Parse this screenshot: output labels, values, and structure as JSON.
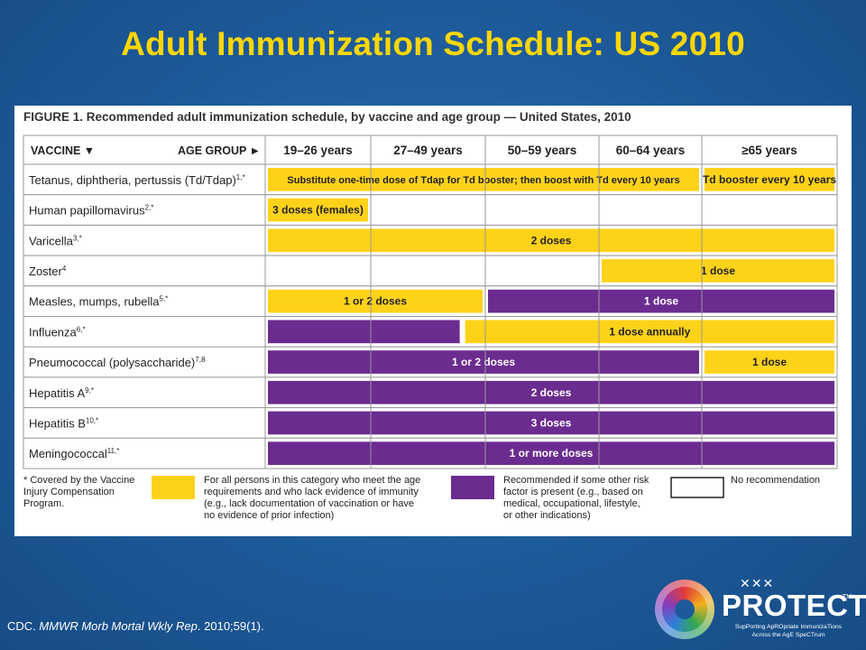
{
  "slide": {
    "title": "Adult Immunization Schedule: US 2010",
    "citation_prefix": "CDC. ",
    "citation_journal": "MMWR Morb Mortal Wkly Rep",
    "citation_suffix": ". 2010;59(1).",
    "logo_text": "PROTECT",
    "logo_tm": "TM",
    "logo_tagline_1": "SupPorting ApROpriate ImmunizaTions",
    "logo_tagline_2": "Across the AgE SpeCTrum"
  },
  "chart_data": {
    "type": "table",
    "title": "FIGURE 1. Recommended adult immunization schedule, by vaccine and age group — United States, 2010",
    "row_header_label": "VACCINE ▼",
    "col_header_label": "AGE GROUP ►",
    "age_groups": [
      "19–26 years",
      "27–49 years",
      "50–59 years",
      "60–64 years",
      "≥65 years"
    ],
    "colors": {
      "recommended_all": "#ffd21a",
      "recommended_risk": "#6b2c8f",
      "none": "#ffffff"
    },
    "rows": [
      {
        "vaccine": "Tetanus, diphtheria, pertussis (Td/Tdap)",
        "sup": "1,*",
        "bars": [
          {
            "label": "Substitute one-time dose of Tdap for Td booster; then boost with Td every 10 years",
            "start": 0,
            "end": 4,
            "kind": "recommended_all"
          },
          {
            "label": "Td booster every 10 years",
            "start": 4,
            "end": 5,
            "kind": "recommended_all"
          }
        ]
      },
      {
        "vaccine": "Human papillomavirus",
        "sup": "2,*",
        "bars": [
          {
            "label": "3 doses (females)",
            "start": 0,
            "end": 1,
            "kind": "recommended_all"
          }
        ]
      },
      {
        "vaccine": "Varicella",
        "sup": "3,*",
        "bars": [
          {
            "label": "2 doses",
            "start": 0,
            "end": 5,
            "kind": "recommended_all"
          }
        ]
      },
      {
        "vaccine": "Zoster",
        "sup": "4",
        "bars": [
          {
            "label": "1 dose",
            "start": 3,
            "end": 5,
            "kind": "recommended_all"
          }
        ]
      },
      {
        "vaccine": "Measles, mumps, rubella",
        "sup": "5,*",
        "bars": [
          {
            "label": "1 or 2 doses",
            "start": 0,
            "end": 2,
            "kind": "recommended_all"
          },
          {
            "label": "1 dose",
            "start": 2,
            "end": 5,
            "kind": "recommended_risk"
          }
        ]
      },
      {
        "vaccine": "Influenza",
        "sup": "6,*",
        "bars": [
          {
            "label": "",
            "start": 0,
            "end": 1.8,
            "kind": "recommended_risk"
          },
          {
            "label": "1 dose annually",
            "start": 1.8,
            "end": 5,
            "kind": "recommended_all"
          }
        ]
      },
      {
        "vaccine": "Pneumococcal (polysaccharide)",
        "sup": "7,8",
        "bars": [
          {
            "label": "1 or 2 doses",
            "start": 0,
            "end": 4,
            "kind": "recommended_risk"
          },
          {
            "label": "1 dose",
            "start": 4,
            "end": 5,
            "kind": "recommended_all"
          }
        ]
      },
      {
        "vaccine": "Hepatitis A",
        "sup": "9,*",
        "bars": [
          {
            "label": "2 doses",
            "start": 0,
            "end": 5,
            "kind": "recommended_risk"
          }
        ]
      },
      {
        "vaccine": "Hepatitis B",
        "sup": "10,*",
        "bars": [
          {
            "label": "3 doses",
            "start": 0,
            "end": 5,
            "kind": "recommended_risk"
          }
        ]
      },
      {
        "vaccine": "Meningococcal",
        "sup": "11,*",
        "bars": [
          {
            "label": "1 or more doses",
            "start": 0,
            "end": 5,
            "kind": "recommended_risk"
          }
        ]
      }
    ],
    "legend": {
      "footnote": [
        "* Covered by the Vaccine",
        "Injury Compensation",
        "Program."
      ],
      "recommended_all": [
        "For all persons in this category who meet the age",
        "requirements and who lack evidence of immunity",
        "(e.g., lack documentation of vaccination or have",
        "no evidence of prior infection)"
      ],
      "recommended_risk": [
        "Recommended if some other risk",
        "factor is present (e.g., based on",
        "medical, occupational, lifestyle,",
        "or other indications)"
      ],
      "none": [
        "No recommendation"
      ]
    }
  }
}
